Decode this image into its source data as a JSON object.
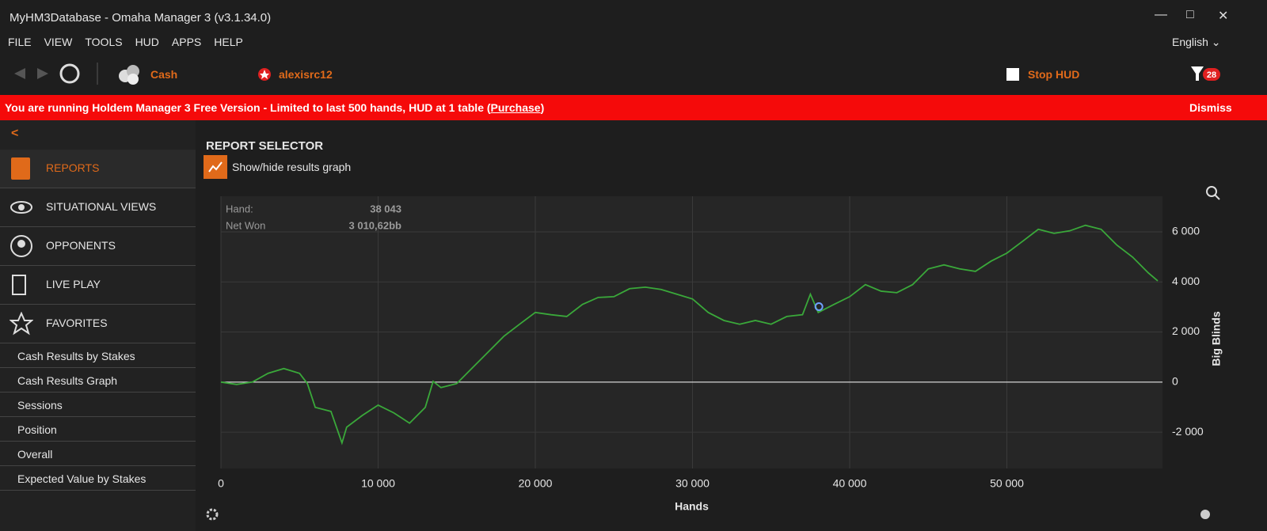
{
  "window": {
    "title": "MyHM3Database - Omaha Manager 3 (v3.1.34.0)"
  },
  "menu": [
    "FILE",
    "VIEW",
    "TOOLS",
    "HUD",
    "APPS",
    "HELP"
  ],
  "language": "English",
  "toolbar": {
    "game": "Cash",
    "player": "alexisrc12",
    "stop_hud": "Stop HUD",
    "filter_count": "28"
  },
  "banner": {
    "text": "You are running Holdem Manager 3 Free Version - Limited to last 500 hands, HUD at 1 table (",
    "link": "Purchase",
    "close": ")",
    "dismiss": "Dismiss"
  },
  "sidebar": {
    "back": "<",
    "sections": [
      "REPORTS",
      "SITUATIONAL VIEWS",
      "OPPONENTS",
      "LIVE PLAY",
      "FAVORITES"
    ],
    "favorites": [
      "Cash Results by Stakes",
      "Cash Results Graph",
      "Sessions",
      "Position",
      "Overall",
      "Expected Value by Stakes"
    ]
  },
  "report": {
    "title": "REPORT SELECTOR",
    "toggle": "Show/hide results graph"
  },
  "chart_data": {
    "type": "line",
    "x_label": "Hands",
    "y_label": "Big Blinds",
    "xlim": [
      0,
      59900
    ],
    "ylim": [
      -3450,
      7420
    ],
    "xticks": [
      0,
      {
        "value": 10000,
        "label": "10 000"
      },
      {
        "value": 20000,
        "label": "20 000"
      },
      {
        "value": 30000,
        "label": "30 000"
      },
      {
        "value": 40000,
        "label": "40 000"
      },
      {
        "value": 50000,
        "label": "50 000"
      }
    ],
    "yticks": [
      {
        "value": -2000,
        "label": "-2 000"
      },
      0,
      {
        "value": 2000,
        "label": "2 000"
      },
      {
        "value": 4000,
        "label": "4 000"
      },
      {
        "value": 6000,
        "label": "6 000"
      }
    ],
    "grid": true,
    "x": [
      0,
      1000,
      2000,
      3000,
      4000,
      5000,
      5500,
      6000,
      7000,
      7700,
      8000,
      9000,
      10000,
      11000,
      12000,
      13000,
      13500,
      14000,
      15000,
      16000,
      17000,
      18000,
      19000,
      20000,
      21000,
      22000,
      23000,
      24000,
      25000,
      26000,
      27000,
      28000,
      29000,
      30000,
      31000,
      32000,
      33000,
      34000,
      35000,
      36000,
      37000,
      37500,
      38000,
      39000,
      40000,
      41000,
      42000,
      43000,
      44000,
      45000,
      46000,
      47000,
      48000,
      49000,
      50000,
      51000,
      52000,
      53000,
      54000,
      55000,
      56000,
      57000,
      58000,
      59000,
      59600
    ],
    "series": [
      {
        "name": "Net Won",
        "color": "#3aa83a",
        "values": [
          0,
          -95,
          0,
          350,
          540,
          350,
          -60,
          -1010,
          -1170,
          -2430,
          -1800,
          -1330,
          -920,
          -1230,
          -1640,
          -1010,
          30,
          -220,
          -60,
          570,
          1200,
          1830,
          2310,
          2780,
          2690,
          2620,
          3100,
          3380,
          3410,
          3730,
          3790,
          3700,
          3510,
          3320,
          2780,
          2460,
          2310,
          2460,
          2310,
          2620,
          2690,
          3510,
          2780,
          3100,
          3410,
          3890,
          3630,
          3570,
          3890,
          4520,
          4680,
          4520,
          4420,
          4830,
          5150,
          5620,
          6100,
          5940,
          6040,
          6260,
          6100,
          5470,
          4990,
          4360,
          4040
        ]
      }
    ],
    "highlight": {
      "x": 38043,
      "y": 3010.62,
      "x_name": "Hand:",
      "y_name": "Net Won",
      "x_label": "38 043",
      "y_label": "3 010,62bb"
    }
  }
}
